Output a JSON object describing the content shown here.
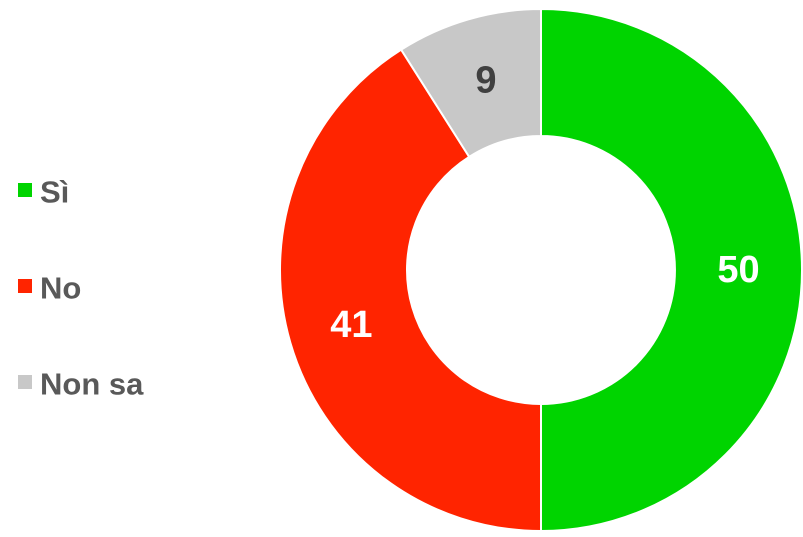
{
  "chart_data": {
    "type": "donut",
    "categories": [
      "Sì",
      "No",
      "Non sa"
    ],
    "values": [
      50,
      41,
      9
    ],
    "colors": [
      "#00d400",
      "#ff2400",
      "#c8c8c8"
    ],
    "label_colors": [
      "#ffffff",
      "#ffffff",
      "#404040"
    ],
    "legend": "left"
  }
}
